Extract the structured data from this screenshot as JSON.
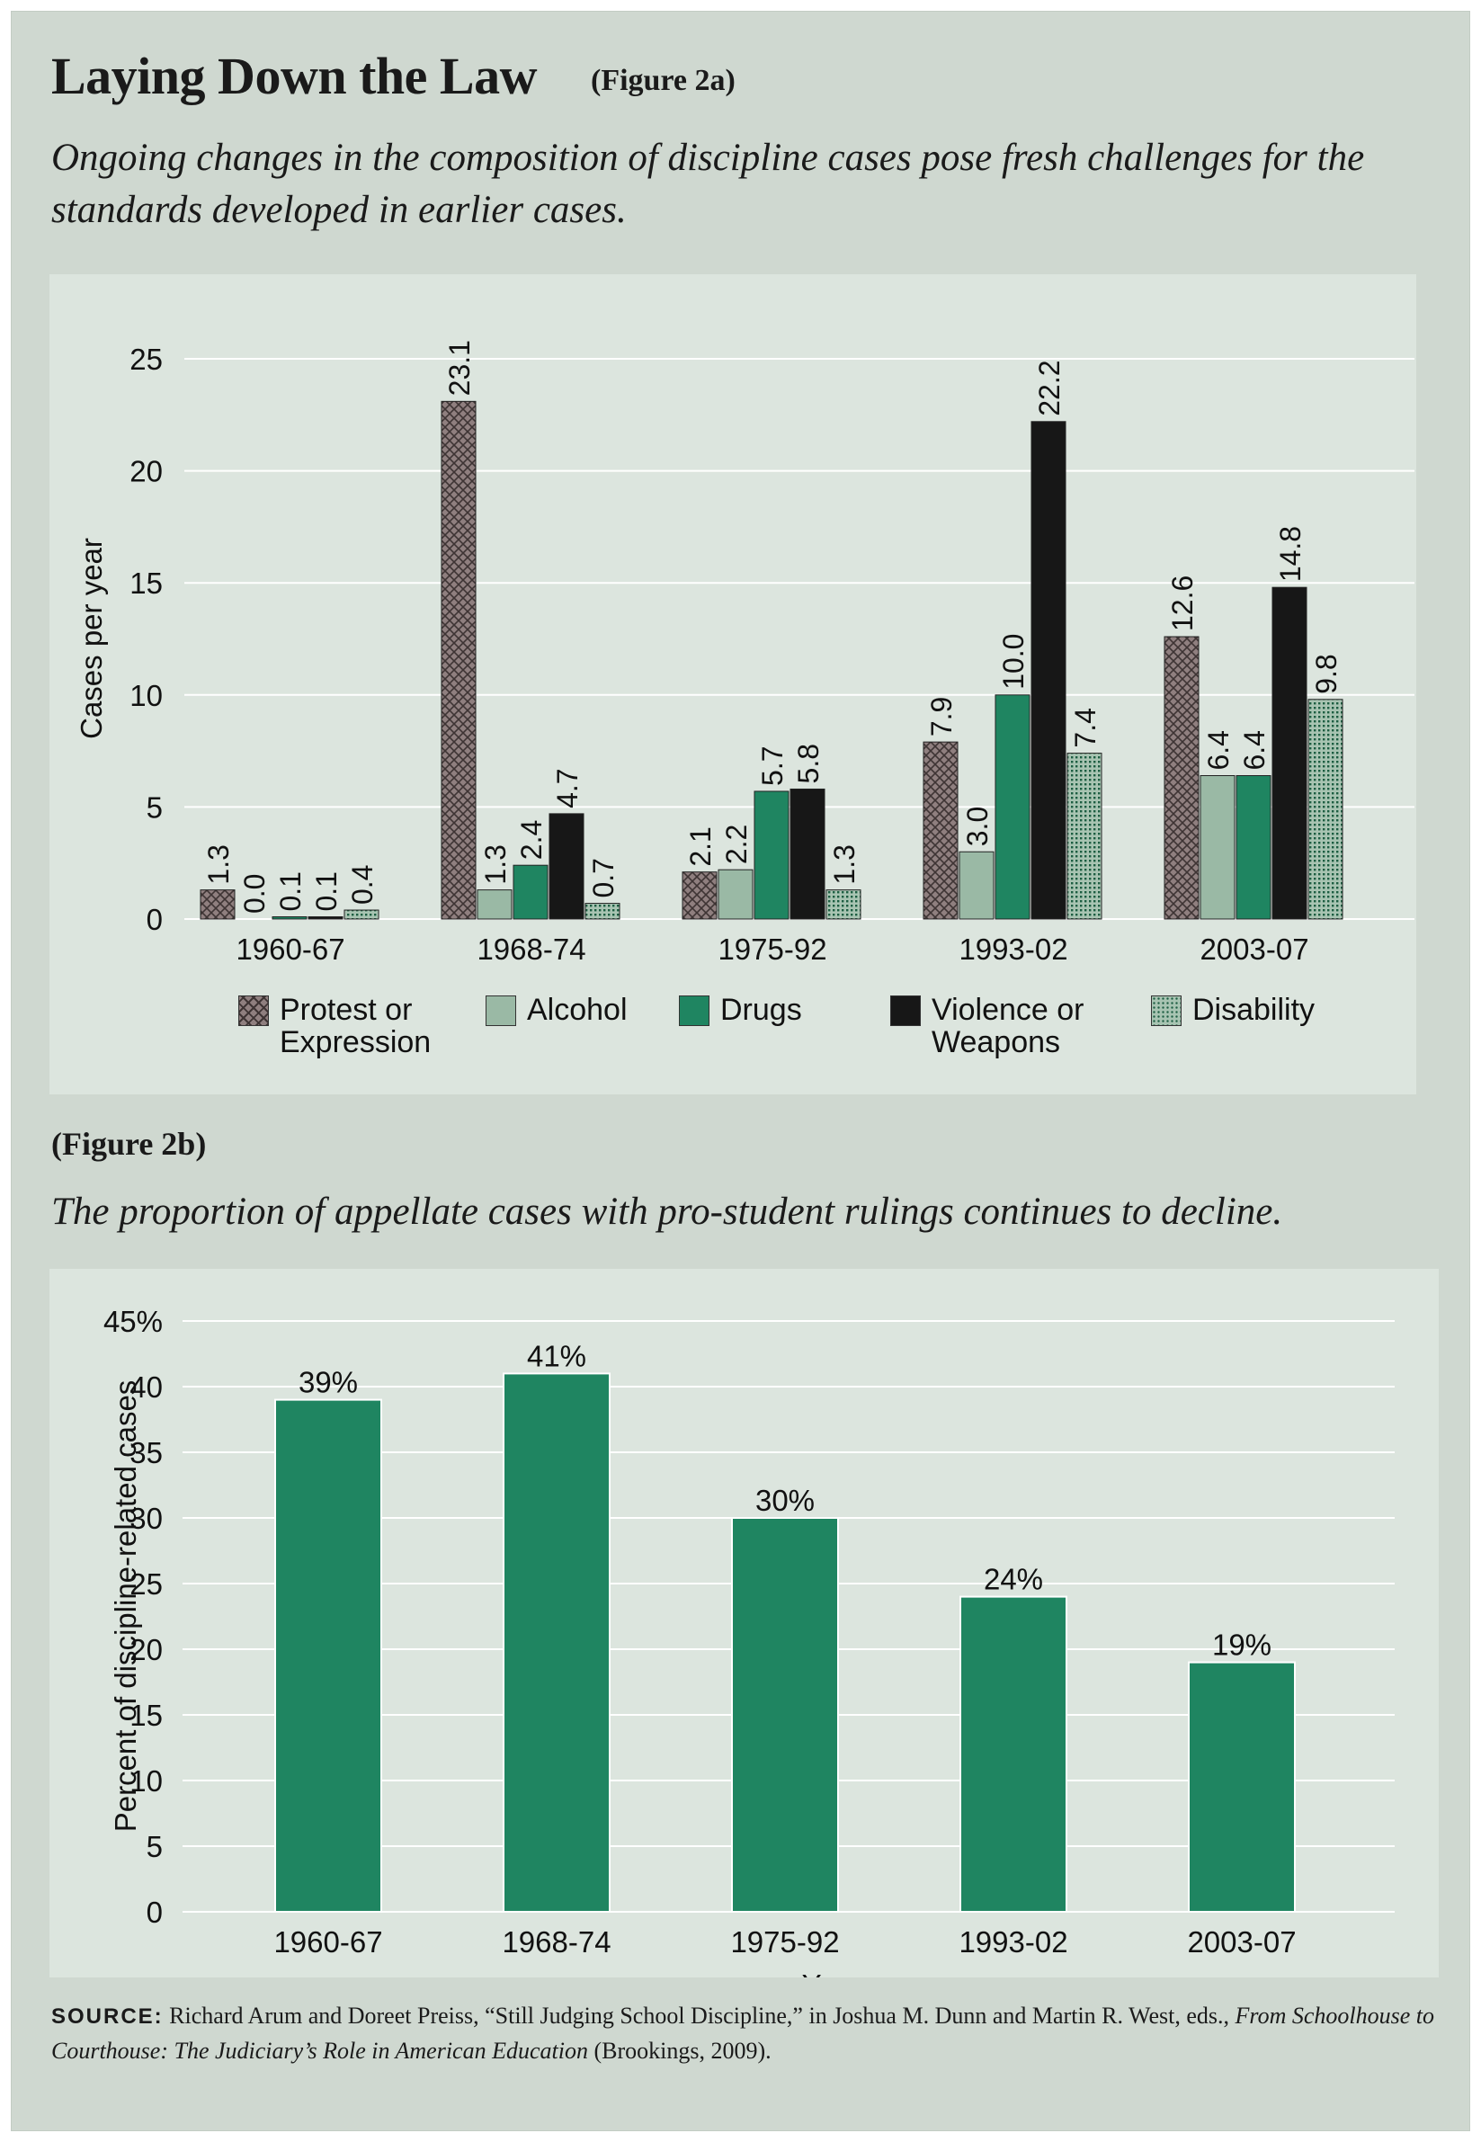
{
  "title": "Laying Down the Law",
  "fig_a_label": "(Figure 2a)",
  "subtitle_a": "Ongoing changes in the composition of discipline cases pose fresh challenges for the standards developed in earlier cases.",
  "fig_b_label": "(Figure 2b)",
  "subtitle_b": "The proportion of appellate cases with pro-student rulings continues to decline.",
  "source": {
    "label": "SOURCE:",
    "text_plain": " Richard Arum and Doreet Preiss, “Still Judging School Discipline,” in Joshua M. Dunn and Martin R. West, eds., ",
    "text_italic": "From Schoolhouse to Courthouse: The Judiciary’s Role in American Education",
    "text_end": " (Brookings, 2009)."
  },
  "colors": {
    "background": "#cfd8d0",
    "panel": "#dce5de",
    "protest": "#8f7f7f",
    "alcohol": "#9ab9a5",
    "drugs": "#1f8561",
    "violence": "#171717",
    "disability": "#4b8a6c",
    "bar_b": "#1f8561"
  },
  "chart_data": [
    {
      "type": "bar",
      "categories": [
        "1960-67",
        "1968-74",
        "1975-92",
        "1993-02",
        "2003-07"
      ],
      "ylabel": "Cases per year",
      "ylim": [
        0,
        25
      ],
      "yticks": [
        0,
        5,
        10,
        15,
        20,
        25
      ],
      "grid": true,
      "legend_position": "bottom",
      "series": [
        {
          "name": "Protest or Expression",
          "values": [
            1.3,
            23.1,
            2.1,
            7.9,
            12.6
          ],
          "labels": [
            "1.3",
            "23.1",
            "2.1",
            "7.9",
            "12.6"
          ],
          "pattern": "crosshatch"
        },
        {
          "name": "Alcohol",
          "values": [
            0.0,
            1.3,
            2.2,
            3.0,
            6.4
          ],
          "labels": [
            "0.0",
            "1.3",
            "2.2",
            "3.0",
            "6.4"
          ],
          "pattern": "solid"
        },
        {
          "name": "Drugs",
          "values": [
            0.1,
            2.4,
            5.7,
            10.0,
            6.4
          ],
          "labels": [
            "0.1",
            "2.4",
            "5.7",
            "10.0",
            "6.4"
          ],
          "pattern": "solid"
        },
        {
          "name": "Violence or Weapons",
          "values": [
            0.1,
            4.7,
            5.8,
            22.2,
            14.8
          ],
          "labels": [
            "0.1",
            "4.7",
            "5.8",
            "22.2",
            "14.8"
          ],
          "pattern": "solid"
        },
        {
          "name": "Disability",
          "values": [
            0.4,
            0.7,
            1.3,
            7.4,
            9.8
          ],
          "labels": [
            "0.4",
            "0.7",
            "1.3",
            "7.4",
            "9.8"
          ],
          "pattern": "dotted"
        }
      ],
      "legend_lines": [
        [
          "Protest or",
          "Expression"
        ],
        [
          "Alcohol"
        ],
        [
          "Drugs"
        ],
        [
          "Violence or",
          "Weapons"
        ],
        [
          "Disability"
        ]
      ]
    },
    {
      "type": "bar",
      "categories": [
        "1960-67",
        "1968-74",
        "1975-92",
        "1993-02",
        "2003-07"
      ],
      "values": [
        39,
        41,
        30,
        24,
        19
      ],
      "labels": [
        "39%",
        "41%",
        "30%",
        "24%",
        "19%"
      ],
      "xlabel": "Year",
      "ylabel": "Percent of discipline-related cases",
      "ylim": [
        0,
        45
      ],
      "yticks": [
        0,
        5,
        10,
        15,
        20,
        25,
        30,
        35,
        40,
        45
      ],
      "ytick_labels": [
        "0",
        "5",
        "10",
        "15",
        "20",
        "25",
        "30",
        "35",
        "40",
        "45%"
      ],
      "grid": true
    }
  ]
}
